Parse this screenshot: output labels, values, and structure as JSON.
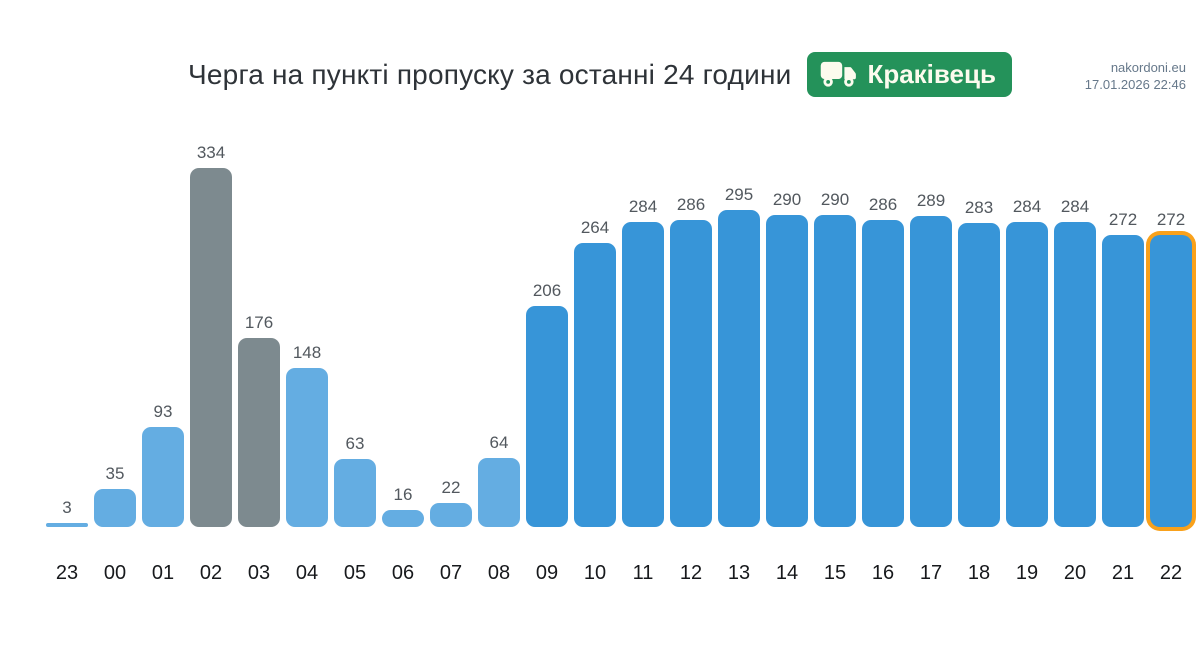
{
  "site": {
    "name": "nakordoni.eu",
    "timestamp": "17.01.2026 22:46"
  },
  "header": {
    "title": "Черга на пункті пропуску за останні 24 години",
    "badge": {
      "label": "Краківець",
      "icon": "truck-icon",
      "bg_color": "#24925a",
      "text_color": "#fcfbee"
    }
  },
  "chart_data": {
    "type": "bar",
    "title": "Черга на пункті пропуску за останні 24 години",
    "categories": [
      "23",
      "00",
      "01",
      "02",
      "03",
      "04",
      "05",
      "06",
      "07",
      "08",
      "09",
      "10",
      "11",
      "12",
      "13",
      "14",
      "15",
      "16",
      "17",
      "18",
      "19",
      "20",
      "21",
      "22"
    ],
    "values": [
      3,
      35,
      93,
      334,
      176,
      148,
      63,
      16,
      22,
      64,
      206,
      264,
      284,
      286,
      295,
      290,
      290,
      286,
      289,
      283,
      284,
      284,
      272,
      272
    ],
    "bar_styles": [
      "light",
      "light",
      "light",
      "gray",
      "gray",
      "light",
      "light",
      "light",
      "light",
      "light",
      "blue",
      "blue",
      "blue",
      "blue",
      "blue",
      "blue",
      "blue",
      "blue",
      "blue",
      "blue",
      "blue",
      "blue",
      "blue",
      "blue"
    ],
    "colors": {
      "light": "#64ade2",
      "gray": "#7d8a8f",
      "blue": "#3795d8",
      "highlight": "#f9a11b"
    },
    "highlighted_category": "22",
    "value_labels": true,
    "axes_visible": false,
    "grid": false,
    "legend": false,
    "xlabel": "",
    "ylabel": ""
  }
}
